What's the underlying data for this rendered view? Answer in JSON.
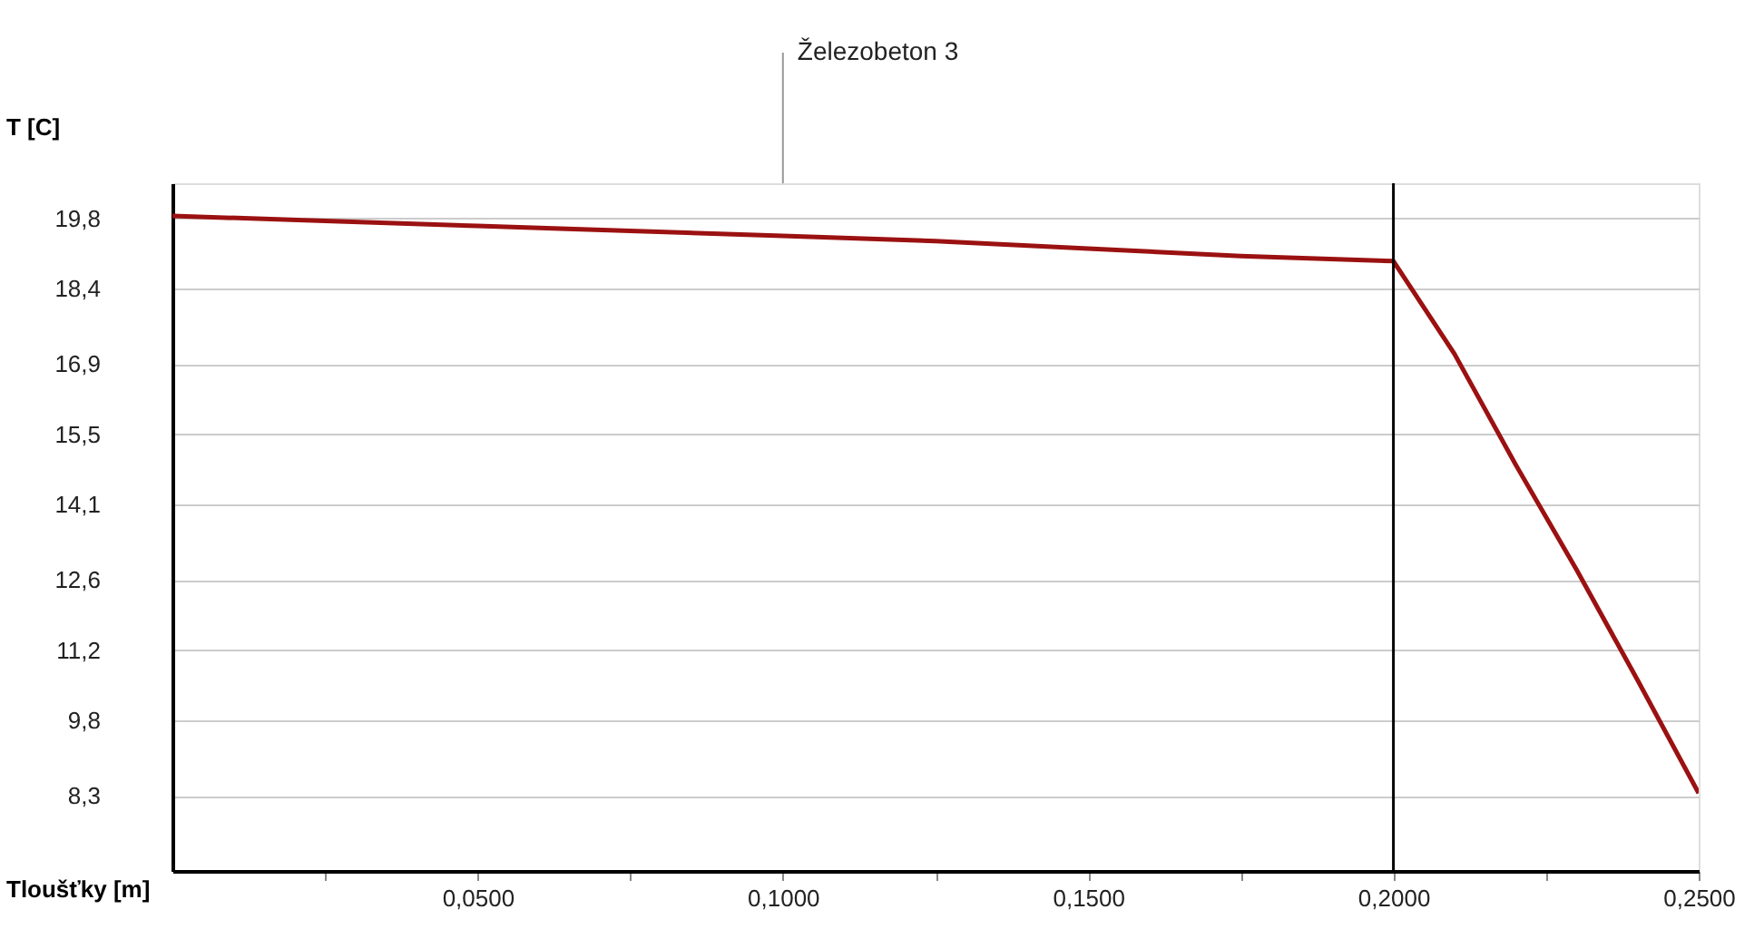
{
  "chart_data": {
    "type": "line",
    "xlabel": "Tloušťky [m]",
    "ylabel": "T [C]",
    "x": [
      0,
      0.025,
      0.05,
      0.075,
      0.1,
      0.125,
      0.15,
      0.175,
      0.2,
      0.21,
      0.22,
      0.23,
      0.24,
      0.25
    ],
    "series": [
      {
        "color": "#9b1111",
        "values": [
          19.85,
          19.75,
          19.65,
          19.55,
          19.45,
          19.35,
          19.2,
          19.05,
          18.95,
          17.1,
          14.9,
          12.8,
          10.6,
          8.35
        ]
      }
    ],
    "xlim": [
      0,
      0.25
    ],
    "xticks": [
      {
        "value": 0.025,
        "label": null
      },
      {
        "value": 0.05,
        "label": "0,0500"
      },
      {
        "value": 0.075,
        "label": null
      },
      {
        "value": 0.1,
        "label": "0,1000"
      },
      {
        "value": 0.125,
        "label": null
      },
      {
        "value": 0.15,
        "label": "0,1500"
      },
      {
        "value": 0.175,
        "label": null
      },
      {
        "value": 0.2,
        "label": "0,2000"
      },
      {
        "value": 0.225,
        "label": null
      },
      {
        "value": 0.25,
        "label": "0,2500"
      }
    ],
    "ylim": [
      6.8,
      20.5
    ],
    "yticks": [
      {
        "value": 8.3,
        "label": "8,3"
      },
      {
        "value": 9.8,
        "label": "9,8"
      },
      {
        "value": 11.2,
        "label": "11,2"
      },
      {
        "value": 12.6,
        "label": "12,6"
      },
      {
        "value": 14.1,
        "label": "14,1"
      },
      {
        "value": 15.5,
        "label": "15,5"
      },
      {
        "value": 16.9,
        "label": "16,9"
      },
      {
        "value": 18.4,
        "label": "18,4"
      },
      {
        "value": 19.8,
        "label": "19,8"
      }
    ],
    "grid": "y",
    "marker": "none",
    "line_style": "solid",
    "ref_lines": [
      {
        "axis": "x",
        "value": 0.2,
        "color": "#000000"
      }
    ],
    "annotations": [
      "Železobeton 3"
    ]
  }
}
